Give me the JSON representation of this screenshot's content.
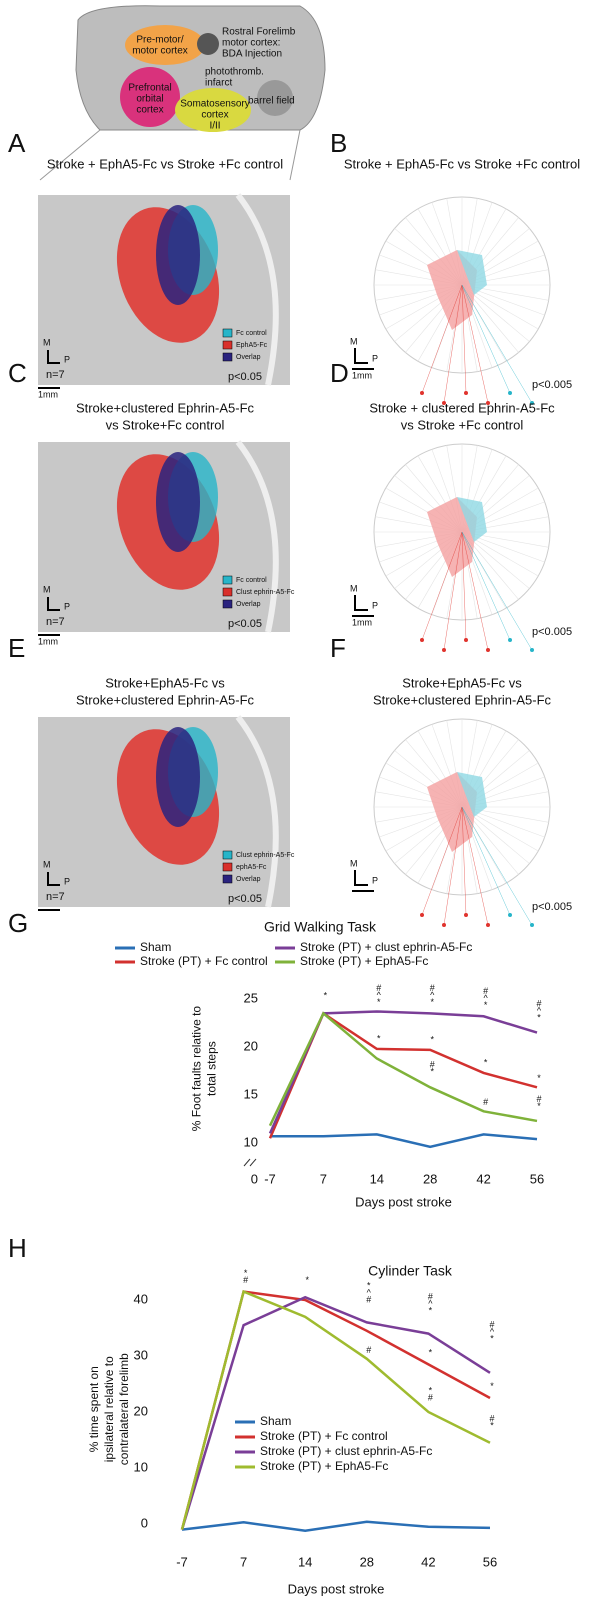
{
  "figure": {
    "diagram": {
      "labels": [
        [
          "Pre-motor/",
          "motor cortex"
        ],
        [
          "Rostral Forelimb",
          "motor cortex:",
          "BDA Injection"
        ],
        [
          "photothromb.",
          "infarct"
        ],
        [
          "Prefrontal",
          "orbital",
          "cortex"
        ],
        [
          "Somatosensory",
          "cortex",
          "I/II"
        ],
        [
          "barrel field"
        ]
      ]
    },
    "panels": [
      {
        "letter": "A",
        "title": [
          "Stroke + EphA5-Fc vs Stroke +Fc control"
        ],
        "legend": [
          {
            "name": "Fc control",
            "color": "#27b5c9"
          },
          {
            "name": "EphA5-Fc",
            "color": "#d9302b"
          },
          {
            "name": "Overlap",
            "color": "#2a237f"
          }
        ],
        "n": "n=7",
        "p": "p<0.05",
        "m": "M",
        "pl": "P",
        "scale": "1mm"
      },
      {
        "letter": "B",
        "title": [
          "Stroke + EphA5-Fc vs Stroke +Fc control"
        ],
        "p": "p<0.005",
        "m": "M",
        "pl": "P",
        "scale": "1mm"
      },
      {
        "letter": "C",
        "title": [
          "Stroke+clustered Ephrin-A5-Fc",
          "vs Stroke+Fc control"
        ],
        "legend": [
          {
            "name": "Fc control",
            "color": "#27b5c9"
          },
          {
            "name": "Clust ephrin-A5-Fc",
            "color": "#d9302b"
          },
          {
            "name": "Overlap",
            "color": "#2a237f"
          }
        ],
        "n": "n=7",
        "p": "p<0.05",
        "m": "M",
        "pl": "P",
        "scale": "1mm"
      },
      {
        "letter": "D",
        "title": [
          "Stroke + clustered Ephrin-A5-Fc",
          "vs Stroke +Fc control"
        ],
        "p": "p<0.005",
        "m": "M",
        "pl": "P",
        "scale": "1mm"
      },
      {
        "letter": "E",
        "title": [
          "Stroke+EphA5-Fc vs",
          "Stroke+clustered Ephrin-A5-Fc"
        ],
        "legend": [
          {
            "name": "Clust ephrin-A5-Fc",
            "color": "#27b5c9"
          },
          {
            "name": "ephA5-Fc",
            "color": "#d9302b"
          },
          {
            "name": "Overlap",
            "color": "#2a237f"
          }
        ],
        "n": "n=7",
        "p": "p<0.05",
        "m": "M",
        "pl": "P"
      },
      {
        "letter": "F",
        "title": [
          "Stroke+EphA5-Fc vs",
          "Stroke+clustered Ephrin-A5-Fc"
        ],
        "p": "p<0.005",
        "m": "M",
        "pl": "P"
      }
    ]
  },
  "chart_data": [
    {
      "type": "line",
      "panel_label": "G",
      "title": "Grid Walking Task",
      "xlabel": "Days post stroke",
      "ylabel": [
        "% Foot faults relative to",
        "total steps"
      ],
      "categories": [
        "-7",
        "7",
        "14",
        "28",
        "42",
        "56"
      ],
      "series": [
        {
          "name": "Sham",
          "color": "#2a6fb5",
          "values": [
            10.7,
            10.7,
            10.9,
            9.6,
            10.9,
            10.4
          ]
        },
        {
          "name": "Stroke (PT) + Fc control",
          "color": "#d2312f",
          "values": [
            10.5,
            23.5,
            19.8,
            19.7,
            17.3,
            15.8
          ]
        },
        {
          "name": "Stroke (PT) + clust ephrin-A5-Fc",
          "color": "#7a3e97",
          "values": [
            11,
            23.5,
            23.7,
            23.5,
            23.2,
            21.5
          ]
        },
        {
          "name": "Stroke (PT) + EphA5-Fc",
          "color": "#7fb23a",
          "values": [
            11.8,
            23.5,
            18.8,
            15.8,
            13.3,
            12.3
          ]
        }
      ],
      "ylim": [
        9.5,
        26
      ],
      "yticks": [
        10,
        15,
        20,
        25
      ],
      "axis_break_label": "0",
      "annotations": [
        {
          "at": 1,
          "y": 25.3,
          "text": [
            "*"
          ]
        },
        {
          "at": 2,
          "y": 24.6,
          "text": [
            "#",
            "^",
            "*"
          ]
        },
        {
          "at": 3,
          "y": 24.6,
          "text": [
            "#",
            "^",
            "*"
          ]
        },
        {
          "at": 4,
          "y": 24.3,
          "text": [
            "#",
            "^",
            "*"
          ]
        },
        {
          "at": 5,
          "y": 23,
          "text": [
            "#",
            "^",
            "*"
          ]
        },
        {
          "at": 2,
          "y": 20.8,
          "text": [
            "*"
          ]
        },
        {
          "at": 3,
          "y": 20.7,
          "text": [
            "*"
          ]
        },
        {
          "at": 4,
          "y": 18.3,
          "text": [
            "*"
          ]
        },
        {
          "at": 5,
          "y": 16.7,
          "text": [
            "*"
          ]
        },
        {
          "at": 3,
          "y": 17.4,
          "text": [
            "#",
            "*"
          ]
        },
        {
          "at": 4,
          "y": 14.2,
          "text": [
            "#"
          ]
        },
        {
          "at": 5,
          "y": 13.8,
          "text": [
            "#",
            "*"
          ]
        }
      ]
    },
    {
      "type": "line",
      "panel_label": "H",
      "title": "Cylinder Task",
      "xlabel": "Days post stroke",
      "ylabel": [
        "% time spent on",
        "ipsilateral relative to",
        "contralateral forelimb"
      ],
      "categories": [
        "-7",
        "7",
        "14",
        "28",
        "42",
        "56"
      ],
      "series": [
        {
          "name": "Sham",
          "color": "#2a6fb5",
          "values": [
            -1,
            0.3,
            -1.2,
            0.4,
            -0.5,
            -0.7
          ]
        },
        {
          "name": "Stroke (PT) + Fc control",
          "color": "#d2312f",
          "values": [
            -1,
            41.5,
            40,
            34.5,
            28.5,
            22.5
          ]
        },
        {
          "name": "Stroke (PT) + clust ephrin-A5-Fc",
          "color": "#7a3e97",
          "values": [
            -1,
            35.5,
            40.5,
            36,
            34,
            27
          ]
        },
        {
          "name": "Stroke (PT) + EphA5-Fc",
          "color": "#9fbb2f",
          "values": [
            -1,
            41.5,
            37,
            29.5,
            20,
            14.5
          ]
        }
      ],
      "ylim": [
        -3,
        44
      ],
      "yticks": [
        0,
        10,
        20,
        30,
        40
      ],
      "annotations": [
        {
          "at": 1,
          "y": 43.5,
          "text": [
            "*",
            "#"
          ]
        },
        {
          "at": 2,
          "y": 43.5,
          "text": [
            "*"
          ]
        },
        {
          "at": 3,
          "y": 40,
          "text": [
            "*",
            "^",
            "#"
          ]
        },
        {
          "at": 4,
          "y": 38,
          "text": [
            "#",
            "^",
            "*"
          ]
        },
        {
          "at": 5,
          "y": 33,
          "text": [
            "#",
            "^",
            "*"
          ]
        },
        {
          "at": 3,
          "y": 31,
          "text": [
            "#"
          ]
        },
        {
          "at": 4,
          "y": 30.5,
          "text": [
            "*"
          ]
        },
        {
          "at": 5,
          "y": 24.5,
          "text": [
            "*"
          ]
        },
        {
          "at": 4,
          "y": 22.5,
          "text": [
            "*",
            "#"
          ]
        },
        {
          "at": 5,
          "y": 17.5,
          "text": [
            "#",
            "*"
          ]
        }
      ]
    }
  ]
}
